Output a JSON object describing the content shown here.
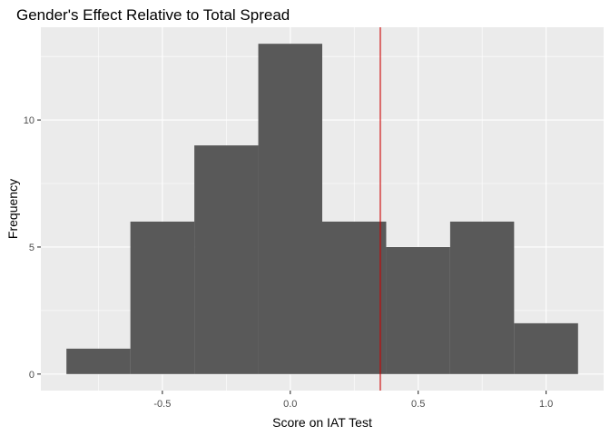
{
  "chart_data": {
    "type": "histogram",
    "title": "Gender's Effect Relative to Total Spread",
    "xlabel": "Score on IAT Test",
    "ylabel": "Frequency",
    "xlim": [
      -0.975,
      1.225
    ],
    "ylim": [
      -0.65,
      13.65
    ],
    "x_ticks": [
      -0.5,
      0.0,
      0.5,
      1.0
    ],
    "x_tick_labels": [
      "-0.5",
      "0.0",
      "0.5",
      "1.0"
    ],
    "y_ticks": [
      0,
      5,
      10
    ],
    "y_tick_labels": [
      "0",
      "5",
      "10"
    ],
    "bins": [
      {
        "x0": -0.875,
        "x1": -0.625,
        "count": 1
      },
      {
        "x0": -0.625,
        "x1": -0.375,
        "count": 6
      },
      {
        "x0": -0.375,
        "x1": -0.125,
        "count": 9
      },
      {
        "x0": -0.125,
        "x1": 0.125,
        "count": 13
      },
      {
        "x0": 0.125,
        "x1": 0.375,
        "count": 6
      },
      {
        "x0": 0.375,
        "x1": 0.625,
        "count": 5
      },
      {
        "x0": 0.625,
        "x1": 0.875,
        "count": 6
      },
      {
        "x0": 0.875,
        "x1": 1.125,
        "count": 2
      }
    ],
    "vline": {
      "x": 0.352,
      "color": "#cc0000"
    },
    "bar_color": "#595959",
    "panel_color": "#ebebeb",
    "grid_color": "#ffffff",
    "grid": true,
    "legend": "none"
  }
}
